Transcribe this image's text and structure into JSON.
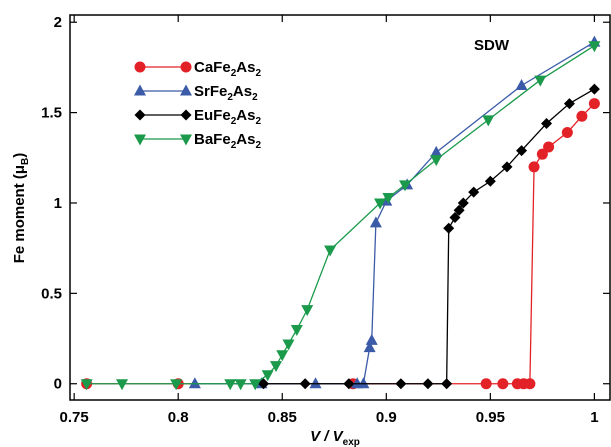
{
  "chart_data": {
    "type": "line",
    "x_label": [
      "V / V",
      "exp"
    ],
    "y_label": [
      "Fe moment (μ",
      "B",
      ")"
    ],
    "annotation": "SDW",
    "xlim": [
      0.748,
      1.0075
    ],
    "ylim": [
      -0.09,
      2.04
    ],
    "xticks": [
      0.75,
      0.8,
      0.85,
      0.9,
      0.95,
      1
    ],
    "yticks": [
      0,
      0.5,
      1,
      1.5,
      2
    ],
    "legend": "upper-left",
    "series": [
      {
        "name": "CaFe2As2",
        "color": "#e32228",
        "marker": "circle",
        "x": [
          0.756,
          0.8,
          0.884,
          0.948,
          0.956,
          0.963,
          0.966,
          0.969,
          0.971,
          0.975,
          0.978,
          0.987,
          0.994,
          1.0
        ],
        "values": [
          0,
          0,
          0,
          0,
          0,
          0,
          0,
          0,
          1.2,
          1.27,
          1.31,
          1.39,
          1.48,
          1.55
        ]
      },
      {
        "name": "SrFe2As2",
        "color": "#3b5ba8",
        "marker": "triangle-up",
        "x": [
          0.808,
          0.84,
          0.866,
          0.886,
          0.889,
          0.892,
          0.893,
          0.895,
          0.9,
          0.91,
          0.924,
          0.965,
          1.0
        ],
        "values": [
          0,
          0,
          0,
          0,
          0,
          0.2,
          0.24,
          0.89,
          1.01,
          1.1,
          1.28,
          1.65,
          1.89
        ]
      },
      {
        "name": "EuFe2As2",
        "color": "#000000",
        "marker": "diamond",
        "x": [
          0.841,
          0.861,
          0.882,
          0.907,
          0.92,
          0.929,
          0.93,
          0.933,
          0.935,
          0.937,
          0.942,
          0.95,
          0.958,
          0.965,
          0.977,
          0.988,
          1.0
        ],
        "values": [
          0,
          0,
          0,
          0,
          0,
          0,
          0.86,
          0.92,
          0.96,
          1.0,
          1.06,
          1.12,
          1.2,
          1.29,
          1.44,
          1.55,
          1.63
        ]
      },
      {
        "name": "BaFe2As2",
        "color": "#1b9a4b",
        "marker": "triangle-down",
        "x": [
          0.756,
          0.773,
          0.799,
          0.825,
          0.83,
          0.837,
          0.843,
          0.847,
          0.85,
          0.853,
          0.857,
          0.862,
          0.873,
          0.897,
          0.901,
          0.909,
          0.924,
          0.949,
          0.974,
          1.0
        ],
        "values": [
          0,
          0,
          0,
          0,
          0,
          0,
          0.05,
          0.1,
          0.16,
          0.22,
          0.3,
          0.41,
          0.74,
          1.0,
          1.03,
          1.1,
          1.24,
          1.46,
          1.68,
          1.87
        ]
      }
    ]
  }
}
